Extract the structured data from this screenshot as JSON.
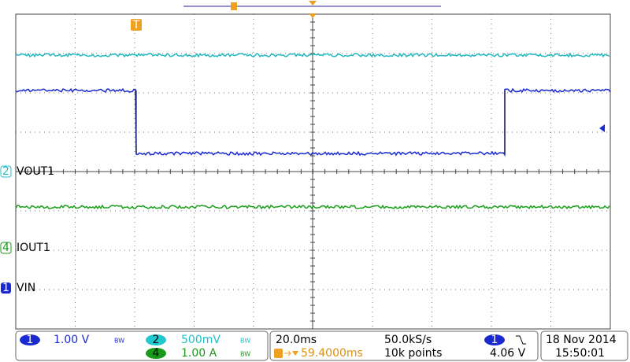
{
  "channel_labels": [
    {
      "badge": "2",
      "text": "VOUT1"
    },
    {
      "badge": "4",
      "text": "IOUT1"
    },
    {
      "badge": "1",
      "text": "VIN"
    }
  ],
  "trigger_marker": "T",
  "status": {
    "ch1": {
      "badge": "1",
      "scale": "1.00 V",
      "bw": "BW"
    },
    "ch2": {
      "badge": "2",
      "scale": "500mV",
      "bw": "BW"
    },
    "ch4": {
      "badge": "4",
      "scale": "1.00 A",
      "bw": "BW"
    },
    "timebase": "20.0ms",
    "sample_rate": "50.0kS/s",
    "trigger_position": "59.4000ms",
    "record_length": "10k points",
    "trigger_source": "1",
    "trigger_level": "4.06 V",
    "date": "18 Nov 2014",
    "time": "15:50:01"
  }
}
